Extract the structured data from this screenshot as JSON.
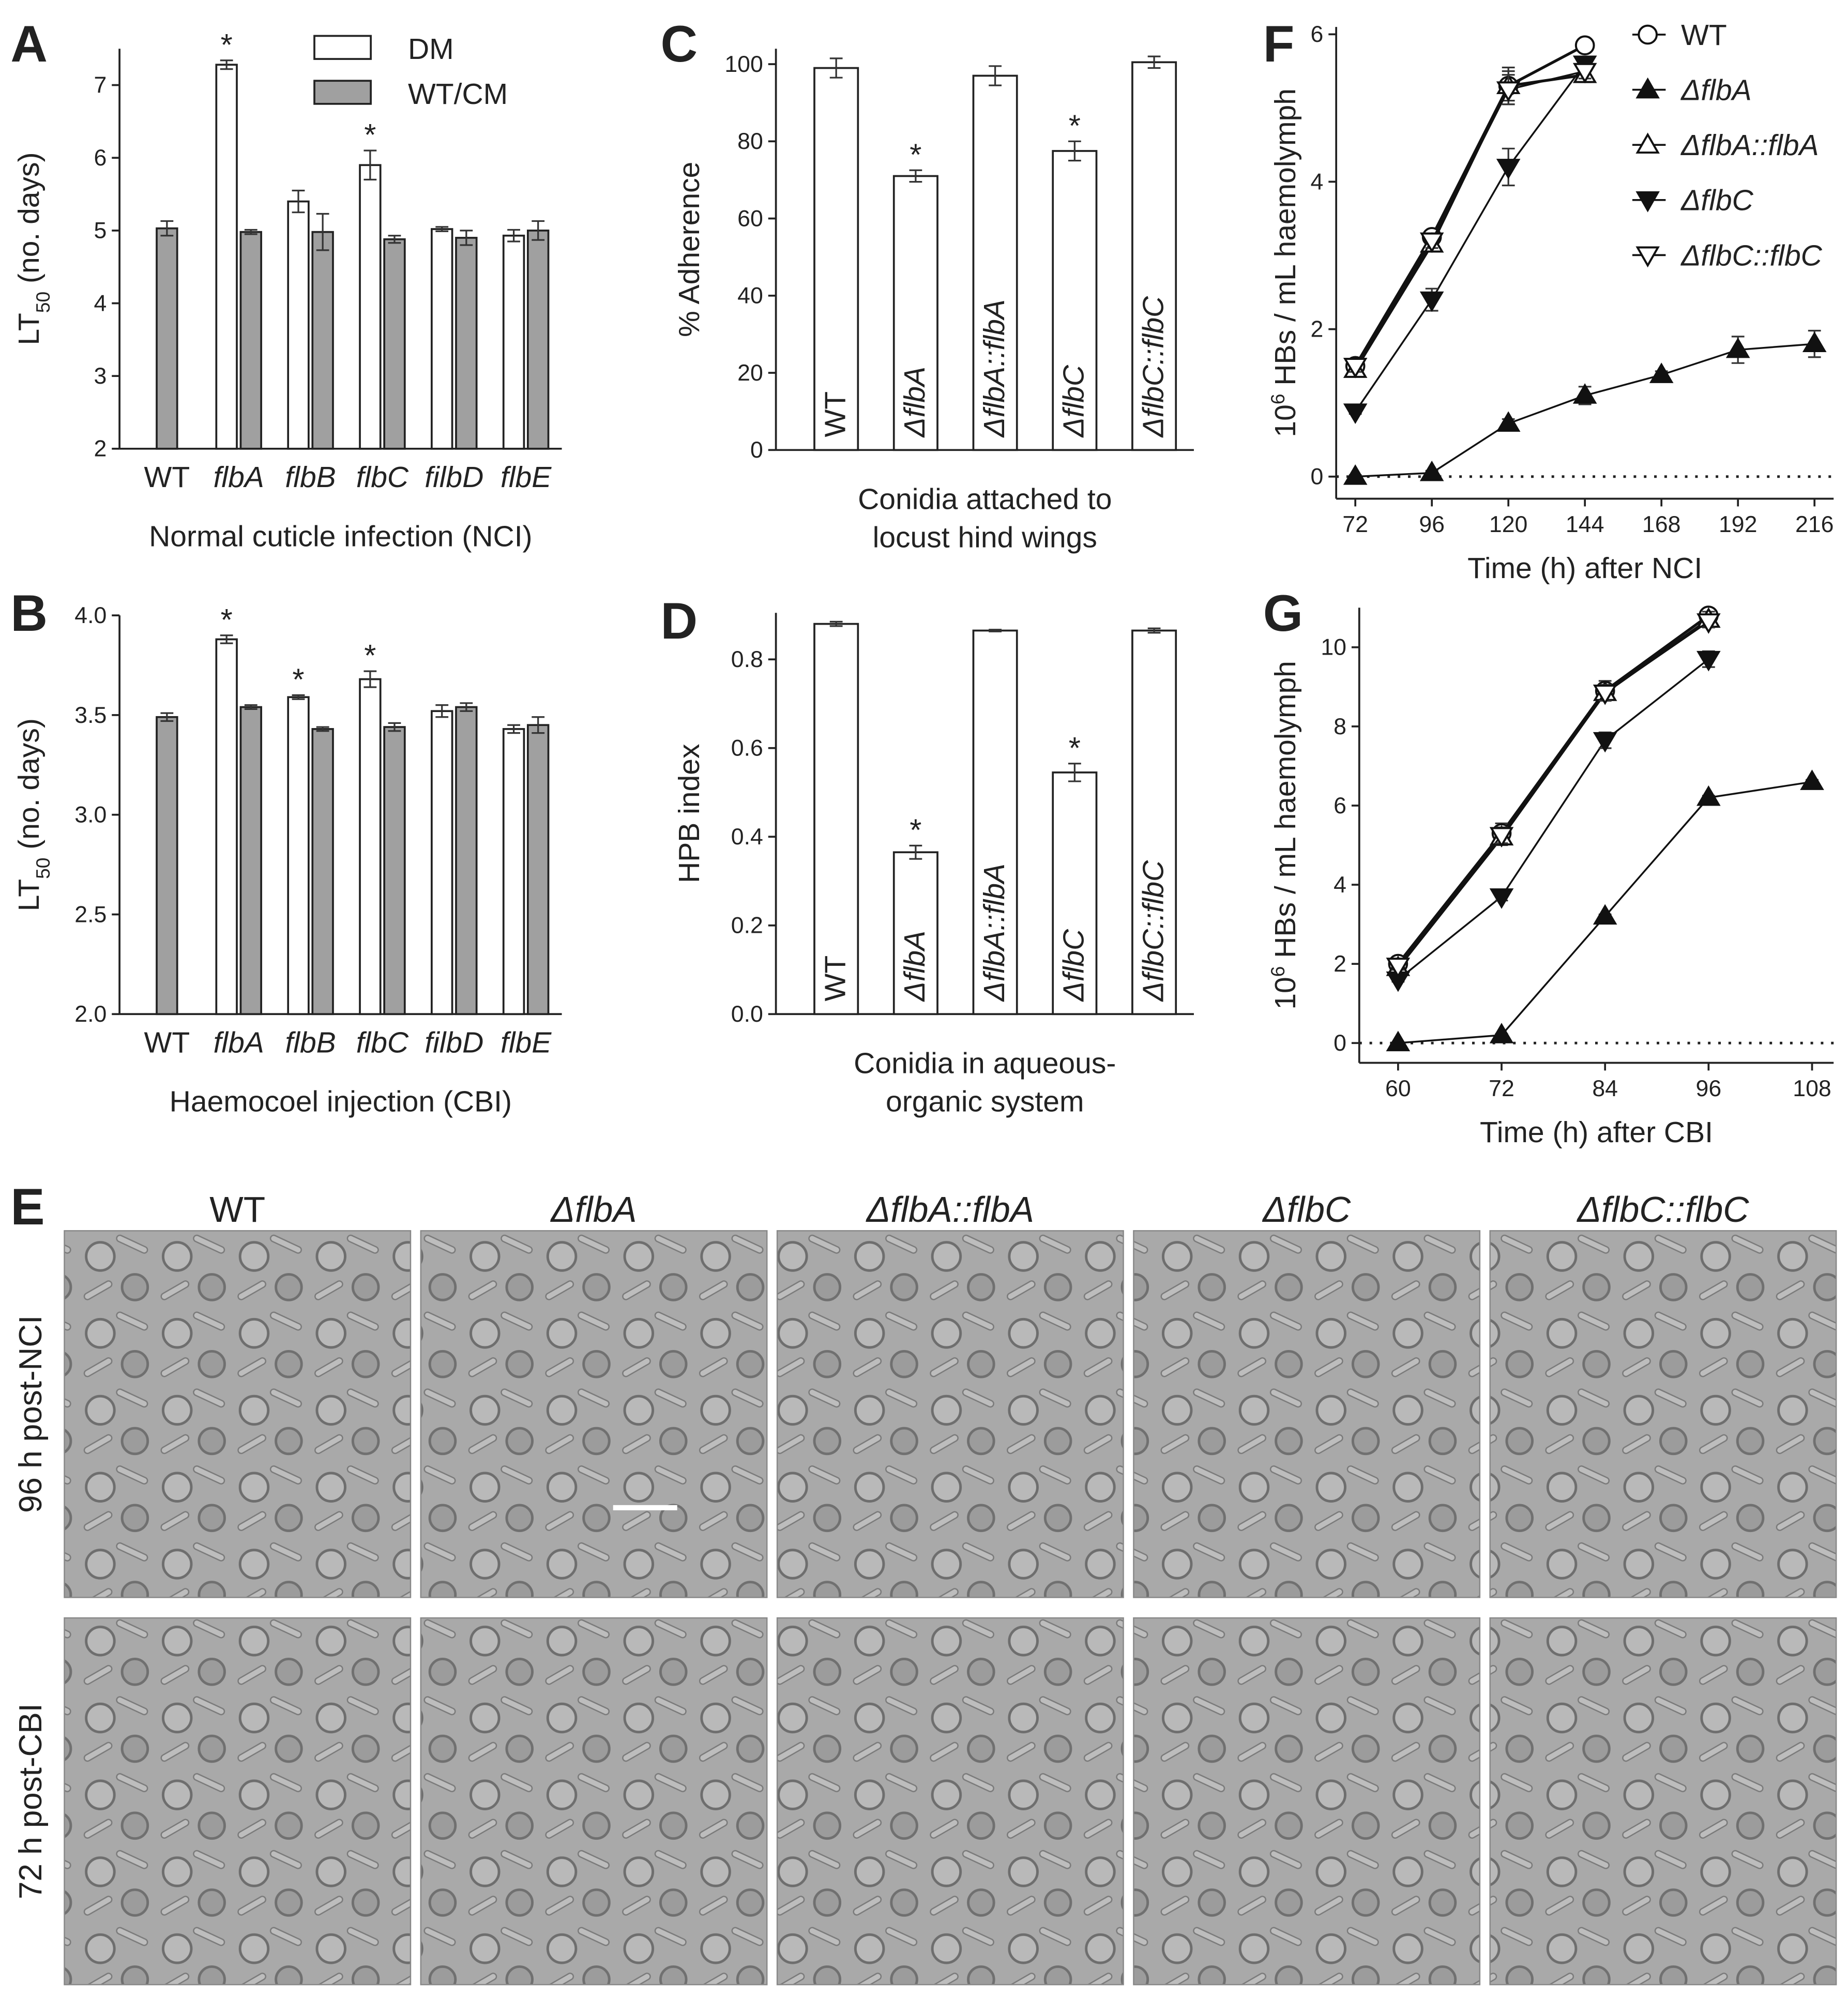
{
  "chart_data": [
    {
      "type": "bar",
      "panel": "A",
      "categories": [
        "WT",
        "flbA",
        "flbB",
        "flbC",
        "filbD",
        "flbE"
      ],
      "series": [
        {
          "name": "DM",
          "color": "#ffffff",
          "values": [
            null,
            7.28,
            5.4,
            5.9,
            5.02,
            4.93
          ],
          "errors": [
            null,
            0.06,
            0.15,
            0.2,
            0.03,
            0.08
          ],
          "significance": [
            null,
            "*",
            null,
            "*",
            null,
            null
          ]
        },
        {
          "name": "WT/CM",
          "color": "#a0a0a0",
          "values": [
            5.03,
            4.98,
            4.98,
            4.88,
            4.9,
            5.0
          ],
          "errors": [
            0.1,
            0.03,
            0.25,
            0.05,
            0.1,
            0.13
          ]
        }
      ],
      "ylim": [
        2,
        7.5
      ],
      "yticks": [
        2,
        3,
        4,
        5,
        6,
        7
      ],
      "y_label": {
        "text": "LT",
        "sub": "50",
        "after": " (no. days)"
      },
      "x_label": "Normal cuticle infection (NCI)",
      "legend": "top-right"
    },
    {
      "type": "bar",
      "panel": "B",
      "categories": [
        "WT",
        "flbA",
        "flbB",
        "flbC",
        "filbD",
        "flbE"
      ],
      "series": [
        {
          "name": "DM",
          "color": "#ffffff",
          "values": [
            null,
            3.88,
            3.59,
            3.68,
            3.52,
            3.43
          ],
          "errors": [
            null,
            0.02,
            0.01,
            0.04,
            0.03,
            0.02
          ],
          "significance": [
            null,
            "*",
            "*",
            "*",
            null,
            null
          ]
        },
        {
          "name": "WT/CM",
          "color": "#a0a0a0",
          "values": [
            3.49,
            3.54,
            3.43,
            3.44,
            3.54,
            3.45
          ],
          "errors": [
            0.02,
            0.01,
            0.01,
            0.02,
            0.02,
            0.04
          ]
        }
      ],
      "ylim": [
        2,
        4
      ],
      "yticks": [
        {
          "value": 2,
          "label": "2.0"
        },
        {
          "value": 2.5,
          "label": "2.5"
        },
        {
          "value": 3,
          "label": "3.0"
        },
        {
          "value": 3.5,
          "label": "3.5"
        },
        {
          "value": 4,
          "label": "4.0"
        }
      ],
      "y_label": {
        "text": "LT",
        "sub": "50",
        "after": " (no. days)"
      },
      "x_label": "Haemocoel injection (CBI)"
    },
    {
      "type": "bar",
      "panel": "C",
      "categories": [
        "WT",
        "ΔflbA",
        "ΔflbA::flbA",
        "ΔflbC",
        "ΔflbC::flbC"
      ],
      "label_position": "inside",
      "values": [
        99,
        71,
        97,
        77.5,
        100.5
      ],
      "errors": [
        2.5,
        1.5,
        2.5,
        2.5,
        1.5
      ],
      "significance": [
        null,
        "*",
        null,
        "*",
        null
      ],
      "color": "#ffffff",
      "ylim": [
        0,
        104
      ],
      "yticks": [
        0,
        20,
        40,
        60,
        80,
        100
      ],
      "y_label": "% Adherence",
      "x_label": [
        "Conidia attached to",
        "locust hind wings"
      ]
    },
    {
      "type": "bar",
      "panel": "D",
      "categories": [
        "WT",
        "ΔflbA",
        "ΔflbA::flbA",
        "ΔflbC",
        "ΔflbC::flbC"
      ],
      "label_position": "inside",
      "values": [
        0.88,
        0.365,
        0.865,
        0.545,
        0.865
      ],
      "errors": [
        0.005,
        0.015,
        0.002,
        0.02,
        0.005
      ],
      "significance": [
        null,
        "*",
        null,
        "*",
        null
      ],
      "color": "#ffffff",
      "ylim": [
        0,
        0.905
      ],
      "yticks": [
        {
          "value": 0,
          "label": "0.0"
        },
        {
          "value": 0.2,
          "label": "0.2"
        },
        {
          "value": 0.4,
          "label": "0.4"
        },
        {
          "value": 0.6,
          "label": "0.6"
        },
        {
          "value": 0.8,
          "label": "0.8"
        }
      ],
      "y_label": "HPB index",
      "x_label": [
        "Conidia in aqueous-",
        "organic system"
      ]
    },
    {
      "type": "line",
      "panel": "F",
      "x": [
        72,
        96,
        120,
        144,
        168,
        192,
        216
      ],
      "xlim": [
        66,
        222
      ],
      "xticks": [
        72,
        96,
        120,
        144,
        168,
        192,
        216
      ],
      "ylim": [
        -0.3,
        6.1
      ],
      "yticks": [
        0,
        2,
        4,
        6
      ],
      "hline": 0,
      "legend": "top-right",
      "y_label": {
        "text": "10",
        "sup": "6",
        "after": " HBs / mL haemolymph"
      },
      "x_label": "Time (h) after NCI",
      "series": [
        {
          "name": "WT",
          "color": "#111111",
          "marker": "circle-open",
          "values": [
            1.5,
            3.25,
            5.3,
            5.85,
            null,
            null,
            null
          ],
          "errors": [
            0.08,
            0.05,
            0.2,
            0.05,
            null,
            null,
            null
          ]
        },
        {
          "name": "ΔflbA",
          "color": "#111111",
          "marker": "triangle-up-filled",
          "values": [
            0,
            0.05,
            0.72,
            1.1,
            1.38,
            1.72,
            1.8
          ],
          "errors": [
            0.02,
            0.03,
            0.06,
            0.12,
            0.05,
            0.18,
            0.18
          ]
        },
        {
          "name": "ΔflbA::flbA",
          "color": "#111111",
          "marker": "triangle-up-open",
          "values": [
            1.45,
            3.15,
            5.3,
            5.45,
            null,
            null,
            null
          ],
          "errors": [
            0.08,
            0.1,
            0.25,
            0.1,
            null,
            null,
            null
          ]
        },
        {
          "name": "ΔflbC",
          "color": "#111111",
          "marker": "triangle-down-filled",
          "values": [
            0.88,
            2.4,
            4.2,
            5.6,
            null,
            null,
            null
          ],
          "errors": [
            0.03,
            0.15,
            0.25,
            0.1,
            null,
            null,
            null
          ]
        },
        {
          "name": "ΔflbC::flbC",
          "color": "#111111",
          "marker": "triangle-down-open",
          "values": [
            1.5,
            3.2,
            5.25,
            5.5,
            null,
            null,
            null
          ],
          "errors": [
            0.08,
            0.1,
            0.2,
            0.1,
            null,
            null,
            null
          ]
        }
      ]
    },
    {
      "type": "line",
      "panel": "G",
      "x": [
        60,
        72,
        84,
        96,
        108
      ],
      "xlim": [
        55.5,
        110.5
      ],
      "xticks": [
        60,
        72,
        84,
        96,
        108
      ],
      "ylim": [
        -0.5,
        11
      ],
      "yticks": [
        0,
        2,
        4,
        6,
        8,
        10
      ],
      "hline": 0,
      "y_label": {
        "text": "10",
        "sup": "6",
        "after": " HBs / mL haemolymph"
      },
      "x_label": "Time (h) after CBI",
      "series": [
        {
          "name": "WT",
          "color": "#111111",
          "marker": "circle-open",
          "values": [
            2,
            5.3,
            8.9,
            10.8,
            null
          ],
          "errors": [
            0.1,
            0.25,
            0.25,
            0.15,
            null
          ]
        },
        {
          "name": "ΔflbA",
          "color": "#111111",
          "marker": "triangle-up-filled",
          "values": [
            0,
            0.2,
            3.2,
            6.2,
            6.6
          ],
          "errors": [
            0.02,
            0.03,
            0.05,
            0.05,
            0.05
          ]
        },
        {
          "name": "ΔflbA::flbA",
          "color": "#111111",
          "marker": "triangle-up-open",
          "values": [
            1.9,
            5.2,
            8.85,
            10.7,
            null
          ],
          "errors": [
            0.1,
            0.2,
            0.2,
            0.2,
            null
          ]
        },
        {
          "name": "ΔflbC",
          "color": "#111111",
          "marker": "triangle-down-filled",
          "values": [
            1.6,
            3.7,
            7.65,
            9.7,
            null
          ],
          "errors": [
            0.05,
            0.1,
            0.2,
            0.2,
            null
          ]
        },
        {
          "name": "ΔflbC::flbC",
          "color": "#111111",
          "marker": "triangle-down-open",
          "values": [
            1.95,
            5.25,
            8.85,
            10.65,
            null
          ],
          "errors": [
            0.1,
            0.2,
            0.2,
            0.15,
            null
          ]
        }
      ]
    }
  ],
  "panel_e": {
    "label": "E",
    "columns": [
      "WT",
      "ΔflbA",
      "ΔflbA::flbA",
      "ΔflbC",
      "ΔflbC::flbC"
    ],
    "rows": [
      "96 h post-NCI",
      "72 h post-CBI"
    ]
  }
}
